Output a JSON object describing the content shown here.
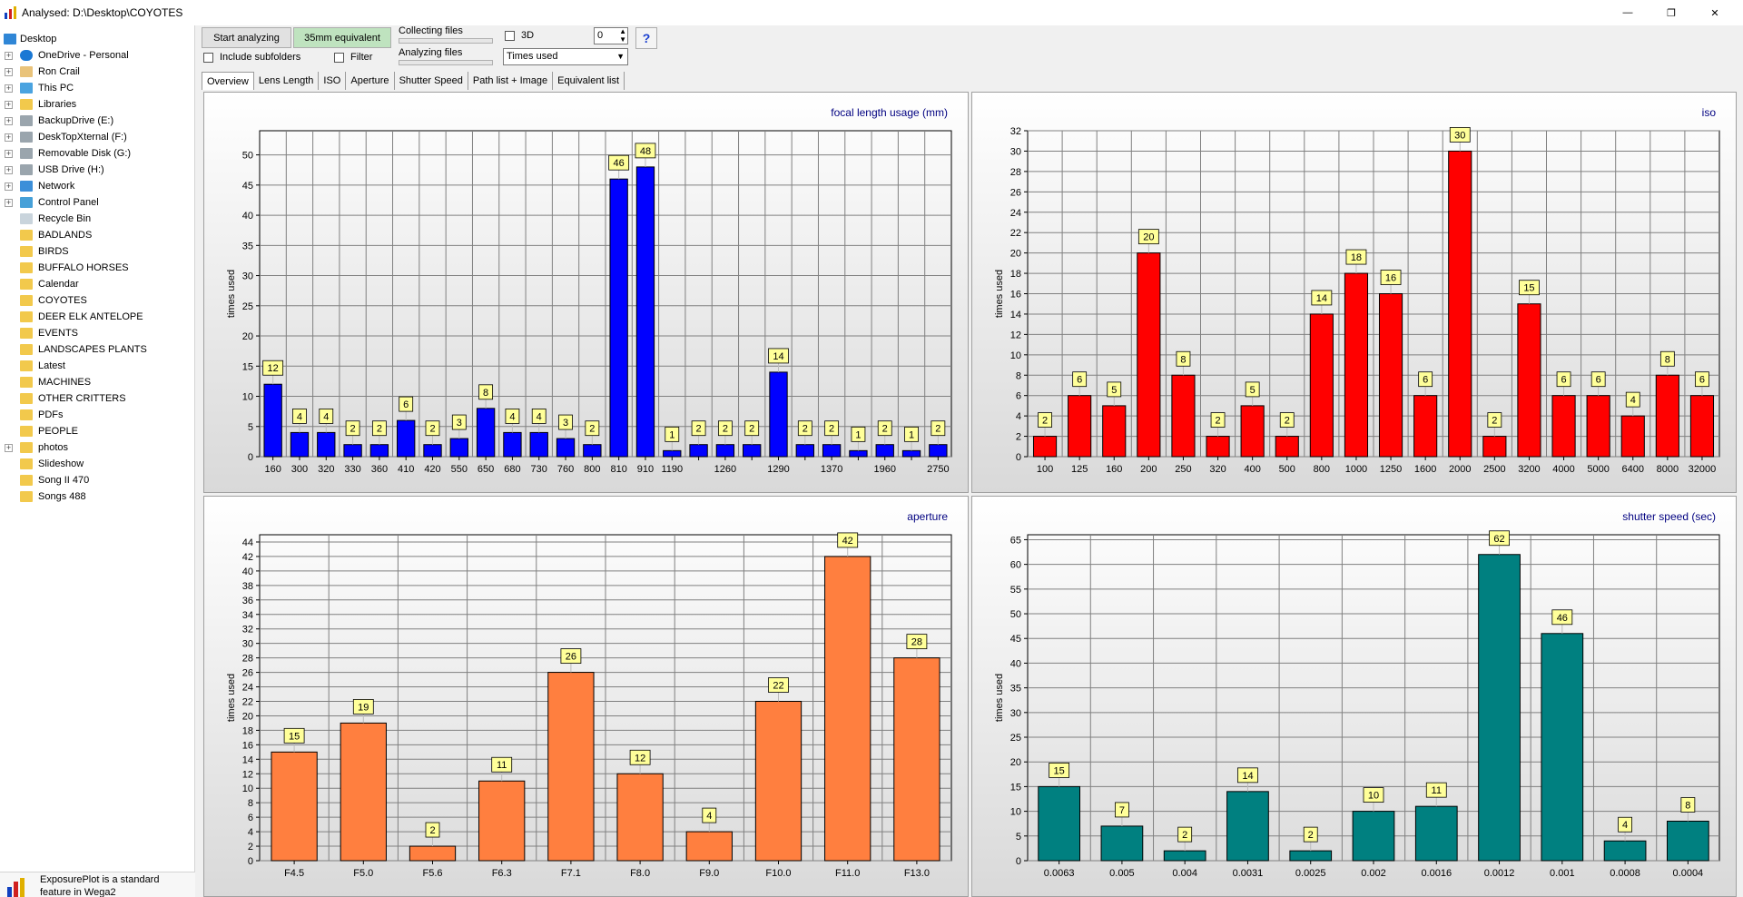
{
  "window": {
    "title": "Analysed: D:\\Desktop\\COYOTES",
    "minimize_glyph": "—",
    "maximize_glyph": "❐",
    "close_glyph": "✕"
  },
  "sidebar": {
    "items": [
      {
        "label": "Desktop",
        "icon": "desktop-icon",
        "expander": false
      },
      {
        "label": "OneDrive - Personal",
        "icon": "cloud-icon",
        "expander": true
      },
      {
        "label": "Ron Crail",
        "icon": "user-icon",
        "expander": true
      },
      {
        "label": "This PC",
        "icon": "computer-icon",
        "expander": true
      },
      {
        "label": "Libraries",
        "icon": "folder-icon",
        "expander": true
      },
      {
        "label": "BackupDrive (E:)",
        "icon": "drive-icon",
        "expander": true
      },
      {
        "label": "DeskTopXternal (F:)",
        "icon": "drive-icon",
        "expander": true
      },
      {
        "label": "Removable Disk (G:)",
        "icon": "drive-icon",
        "expander": true
      },
      {
        "label": "USB Drive (H:)",
        "icon": "drive-icon",
        "expander": true
      },
      {
        "label": "Network",
        "icon": "network-icon",
        "expander": true
      },
      {
        "label": "Control Panel",
        "icon": "control-panel-icon",
        "expander": true
      },
      {
        "label": "Recycle Bin",
        "icon": "recycle-bin-icon",
        "expander": false
      },
      {
        "label": "BADLANDS",
        "icon": "folder-icon",
        "expander": false
      },
      {
        "label": "BIRDS",
        "icon": "folder-icon",
        "expander": false
      },
      {
        "label": "BUFFALO HORSES",
        "icon": "folder-icon",
        "expander": false
      },
      {
        "label": "Calendar",
        "icon": "folder-icon",
        "expander": false
      },
      {
        "label": "COYOTES",
        "icon": "folder-icon",
        "expander": false
      },
      {
        "label": "DEER ELK ANTELOPE",
        "icon": "folder-icon",
        "expander": false
      },
      {
        "label": "EVENTS",
        "icon": "folder-icon",
        "expander": false
      },
      {
        "label": "LANDSCAPES PLANTS",
        "icon": "folder-icon",
        "expander": false
      },
      {
        "label": "Latest",
        "icon": "folder-icon",
        "expander": false
      },
      {
        "label": "MACHINES",
        "icon": "folder-icon",
        "expander": false
      },
      {
        "label": "OTHER CRITTERS",
        "icon": "folder-icon",
        "expander": false
      },
      {
        "label": "PDFs",
        "icon": "folder-icon",
        "expander": false
      },
      {
        "label": "PEOPLE",
        "icon": "folder-icon",
        "expander": false
      },
      {
        "label": "photos",
        "icon": "folder-icon",
        "expander": true
      },
      {
        "label": "Slideshow",
        "icon": "folder-icon",
        "expander": false
      },
      {
        "label": "Song II 470",
        "icon": "folder-icon",
        "expander": false
      },
      {
        "label": "Songs 488",
        "icon": "folder-icon",
        "expander": false
      }
    ],
    "note_line1": "ExposurePlot is a standard",
    "note_line2": "feature in Wega2"
  },
  "toolbar": {
    "start_label": "Start analyzing",
    "equiv_label": "35mm equivalent",
    "include_subfolders": "Include subfolders",
    "filter": "Filter",
    "collecting": "Collecting files",
    "analyzing": "Analyzing files",
    "three_d": "3D",
    "spin_value": "0",
    "mode_value": "Times used",
    "help": "?"
  },
  "tabs": [
    "Overview",
    "Lens Length",
    "ISO",
    "Aperture",
    "Shutter Speed",
    "Path list + Image",
    "Equivalent list"
  ],
  "colors": {
    "focal": "#0000ff",
    "iso": "#ff0000",
    "aperture": "#ff7f3f",
    "shutter": "#008080",
    "label_bg": "#ffff99",
    "title": "#000080"
  },
  "chart_data": [
    {
      "type": "bar",
      "title": "focal length usage (mm)",
      "ylabel": "times used",
      "xlabel": "",
      "ylim": [
        0,
        54
      ],
      "yticks": [
        0,
        5,
        10,
        15,
        20,
        25,
        30,
        35,
        40,
        45,
        50
      ],
      "grid": true,
      "categories": [
        "160",
        "300",
        "320",
        "330",
        "360",
        "410",
        "420",
        "550",
        "650",
        "680",
        "730",
        "760",
        "800",
        "810",
        "910",
        "1190",
        "",
        "1260",
        "",
        "1290",
        "",
        "1370",
        "",
        "1960",
        "",
        "2750"
      ],
      "values": [
        12,
        4,
        4,
        2,
        2,
        6,
        2,
        3,
        8,
        4,
        4,
        3,
        2,
        46,
        48,
        1,
        2,
        2,
        2,
        14,
        2,
        2,
        1,
        2,
        1,
        2
      ]
    },
    {
      "type": "bar",
      "title": "iso",
      "ylabel": "times used",
      "xlabel": "",
      "ylim": [
        0,
        32
      ],
      "yticks": [
        0,
        2,
        4,
        6,
        8,
        10,
        12,
        14,
        16,
        18,
        20,
        22,
        24,
        26,
        28,
        30,
        32
      ],
      "grid": true,
      "categories": [
        "100",
        "125",
        "160",
        "200",
        "250",
        "320",
        "400",
        "500",
        "800",
        "1000",
        "1250",
        "1600",
        "2000",
        "2500",
        "3200",
        "4000",
        "5000",
        "6400",
        "8000",
        "32000"
      ],
      "values": [
        2,
        6,
        5,
        20,
        8,
        2,
        5,
        2,
        14,
        18,
        16,
        6,
        30,
        2,
        15,
        6,
        6,
        4,
        8,
        6
      ]
    },
    {
      "type": "bar",
      "title": "aperture",
      "ylabel": "times used",
      "xlabel": "",
      "ylim": [
        0,
        45
      ],
      "yticks": [
        0,
        2,
        4,
        6,
        8,
        10,
        12,
        14,
        16,
        18,
        20,
        22,
        24,
        26,
        28,
        30,
        32,
        34,
        36,
        38,
        40,
        42,
        44
      ],
      "grid": true,
      "categories": [
        "F4.5",
        "F5.0",
        "F5.6",
        "F6.3",
        "F7.1",
        "F8.0",
        "F9.0",
        "F10.0",
        "F11.0",
        "F13.0"
      ],
      "values": [
        15,
        19,
        2,
        11,
        26,
        12,
        4,
        22,
        42,
        28
      ]
    },
    {
      "type": "bar",
      "title": "shutter speed (sec)",
      "ylabel": "times used",
      "xlabel": "",
      "ylim": [
        0,
        66
      ],
      "yticks": [
        0,
        5,
        10,
        15,
        20,
        25,
        30,
        35,
        40,
        45,
        50,
        55,
        60,
        65
      ],
      "grid": true,
      "categories": [
        "0.0063",
        "0.005",
        "0.004",
        "0.0031",
        "0.0025",
        "0.002",
        "0.0016",
        "0.0012",
        "0.001",
        "0.0008",
        "0.0004"
      ],
      "values": [
        15,
        7,
        2,
        14,
        2,
        10,
        11,
        62,
        46,
        4,
        8
      ]
    }
  ]
}
